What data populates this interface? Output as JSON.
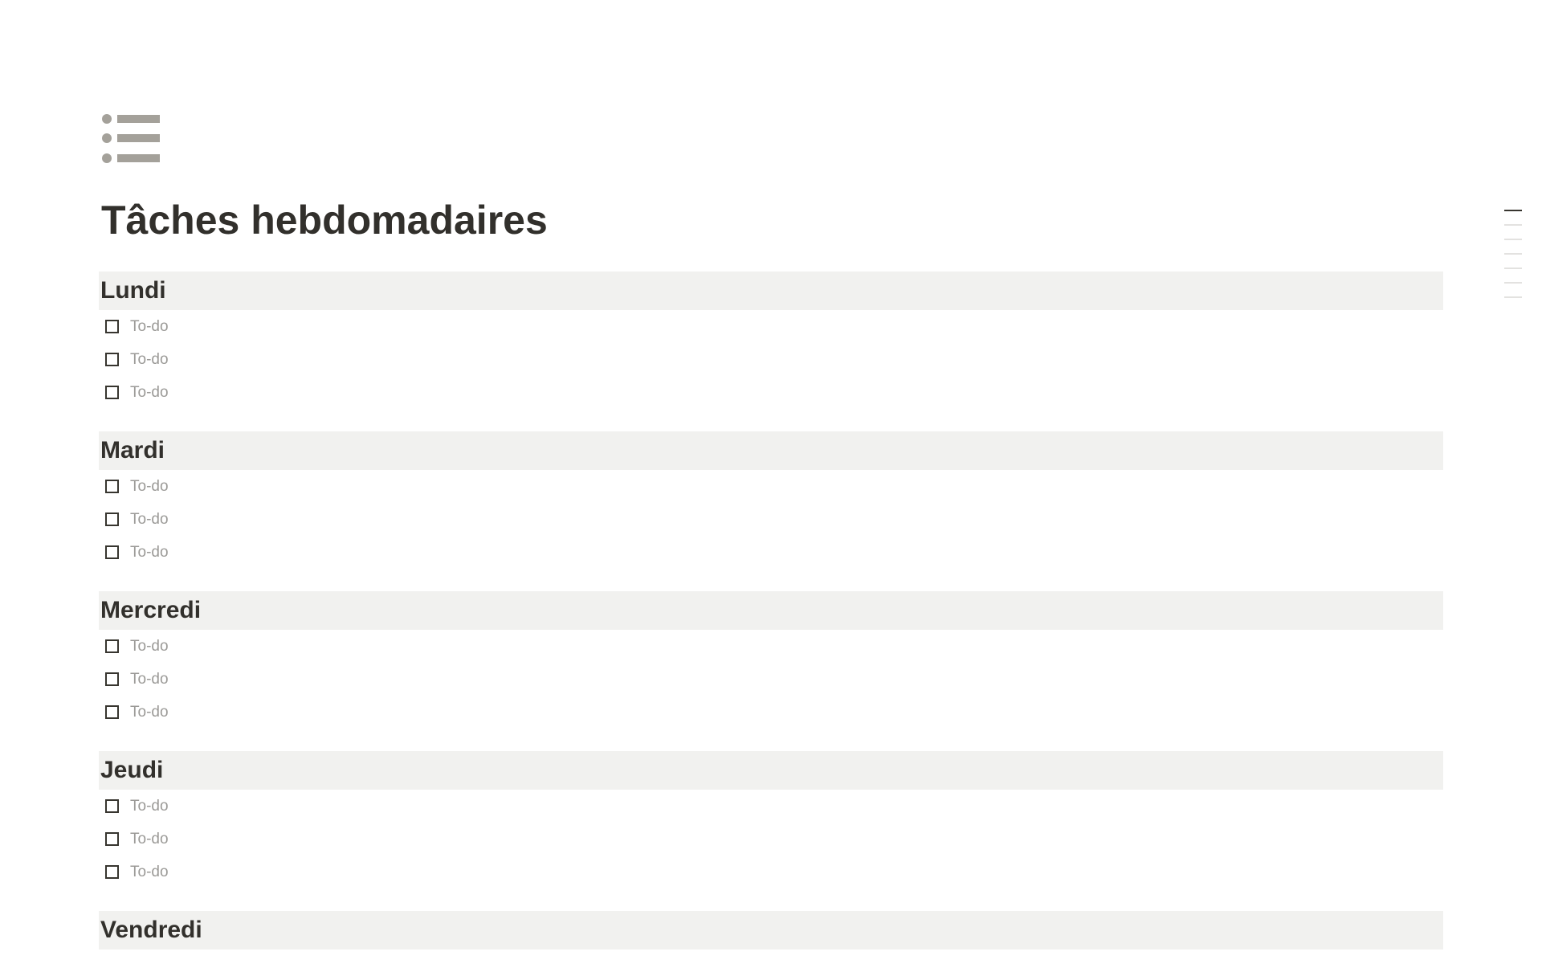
{
  "page": {
    "icon": "bulleted-list-icon",
    "title": "Tâches hebdomadaires",
    "icon_color": "#a4a19a",
    "band_color": "#f1f1ef"
  },
  "sections": [
    {
      "heading": "Lundi",
      "items": [
        {
          "label": "To-do",
          "checked": false
        },
        {
          "label": "To-do",
          "checked": false
        },
        {
          "label": "To-do",
          "checked": false
        }
      ]
    },
    {
      "heading": "Mardi",
      "items": [
        {
          "label": "To-do",
          "checked": false
        },
        {
          "label": "To-do",
          "checked": false
        },
        {
          "label": "To-do",
          "checked": false
        }
      ]
    },
    {
      "heading": "Mercredi",
      "items": [
        {
          "label": "To-do",
          "checked": false
        },
        {
          "label": "To-do",
          "checked": false
        },
        {
          "label": "To-do",
          "checked": false
        }
      ]
    },
    {
      "heading": "Jeudi",
      "items": [
        {
          "label": "To-do",
          "checked": false
        },
        {
          "label": "To-do",
          "checked": false
        },
        {
          "label": "To-do",
          "checked": false
        }
      ]
    },
    {
      "heading": "Vendredi",
      "items": []
    }
  ],
  "outline": {
    "count": 7,
    "active_index": 0
  }
}
